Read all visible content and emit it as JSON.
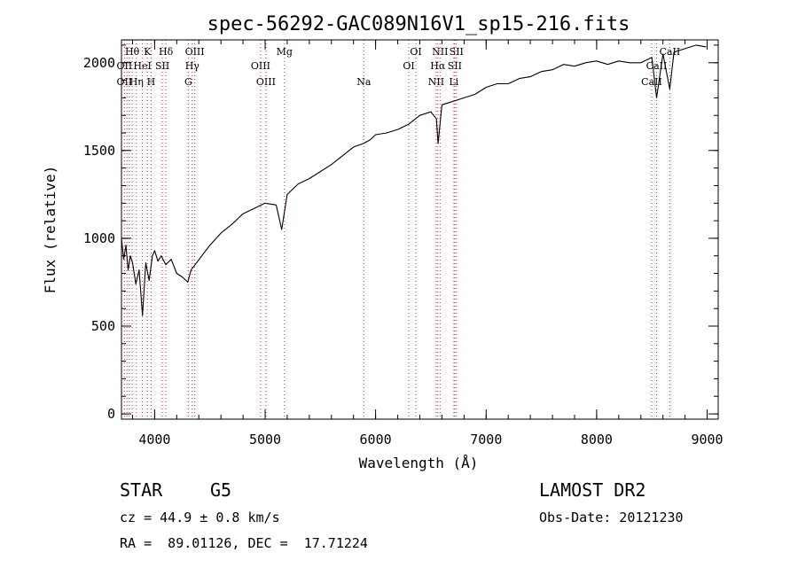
{
  "chart_data": {
    "type": "line",
    "title": "spec-56292-GAC089N16V1_sp15-216.fits",
    "xlabel": "Wavelength (Å)",
    "ylabel": "Flux (relative)",
    "xlim": [
      3700,
      9100
    ],
    "ylim": [
      -30,
      2130
    ],
    "xticks": [
      4000,
      5000,
      6000,
      7000,
      8000,
      9000
    ],
    "yticks": [
      0,
      500,
      1000,
      1500,
      2000
    ],
    "grid": false,
    "series": [
      {
        "x": [
          3700,
          3720,
          3740,
          3760,
          3780,
          3800,
          3830,
          3860,
          3890,
          3920,
          3950,
          3980,
          4000,
          4030,
          4060,
          4100,
          4150,
          4200,
          4250,
          4300,
          4330,
          4380,
          4450,
          4500,
          4600,
          4700,
          4800,
          4900,
          5000,
          5100,
          5150,
          5200,
          5300,
          5400,
          5500,
          5600,
          5700,
          5800,
          5890,
          5950,
          6000,
          6100,
          6200,
          6300,
          6400,
          6500,
          6550,
          6565,
          6600,
          6700,
          6800,
          6900,
          7000,
          7100,
          7200,
          7300,
          7400,
          7500,
          7600,
          7700,
          7800,
          7900,
          8000,
          8100,
          8200,
          8300,
          8400,
          8500,
          8542,
          8600,
          8662,
          8700,
          8800,
          8900,
          8990
        ],
        "y": [
          1000,
          880,
          960,
          820,
          900,
          860,
          740,
          820,
          560,
          860,
          760,
          900,
          930,
          870,
          900,
          850,
          880,
          800,
          780,
          750,
          820,
          860,
          920,
          960,
          1030,
          1080,
          1140,
          1170,
          1200,
          1190,
          1050,
          1250,
          1310,
          1340,
          1380,
          1420,
          1470,
          1520,
          1540,
          1560,
          1590,
          1600,
          1620,
          1650,
          1700,
          1720,
          1680,
          1540,
          1760,
          1780,
          1800,
          1820,
          1860,
          1880,
          1880,
          1910,
          1920,
          1950,
          1960,
          1990,
          1980,
          2000,
          2010,
          1990,
          2010,
          2000,
          2000,
          2030,
          1800,
          2050,
          1850,
          2060,
          2080,
          2100,
          2090
        ]
      }
    ],
    "annotations": [
      {
        "text": "Hθ",
        "x": 3797,
        "row": 1
      },
      {
        "text": "K",
        "x": 3934,
        "row": 1
      },
      {
        "text": "Hδ",
        "x": 4102,
        "row": 1
      },
      {
        "text": "OIII",
        "x": 4363,
        "row": 1
      },
      {
        "text": "Mg",
        "x": 5175,
        "row": 1
      },
      {
        "text": "OI",
        "x": 6364,
        "row": 1
      },
      {
        "text": "NII",
        "x": 6583,
        "row": 1
      },
      {
        "text": "SII",
        "x": 6731,
        "row": 1
      },
      {
        "text": "CaII",
        "x": 8662,
        "row": 1
      },
      {
        "text": "OII",
        "x": 3727,
        "row": 2
      },
      {
        "text": "HeI",
        "x": 3889,
        "row": 2
      },
      {
        "text": "SII",
        "x": 4070,
        "row": 2
      },
      {
        "text": "Hγ",
        "x": 4340,
        "row": 2
      },
      {
        "text": "OIII",
        "x": 4959,
        "row": 2
      },
      {
        "text": "OI",
        "x": 6300,
        "row": 2
      },
      {
        "text": "Hα",
        "x": 6563,
        "row": 2
      },
      {
        "text": "SII",
        "x": 6716,
        "row": 2
      },
      {
        "text": "CaII",
        "x": 8542,
        "row": 2
      },
      {
        "text": "OII",
        "x": 3727,
        "row": 3
      },
      {
        "text": "Hη",
        "x": 3835,
        "row": 3
      },
      {
        "text": "H",
        "x": 3968,
        "row": 3
      },
      {
        "text": "G",
        "x": 4305,
        "row": 3
      },
      {
        "text": "OIII",
        "x": 5007,
        "row": 3
      },
      {
        "text": "Na",
        "x": 5893,
        "row": 3
      },
      {
        "text": "NII",
        "x": 6548,
        "row": 3
      },
      {
        "text": "Li",
        "x": 6708,
        "row": 3
      },
      {
        "text": "CaII",
        "x": 8498,
        "row": 3
      }
    ],
    "line_positions": [
      3727,
      3750,
      3771,
      3797,
      3835,
      3889,
      3934,
      3968,
      4070,
      4102,
      4305,
      4340,
      4363,
      4959,
      5007,
      5175,
      5893,
      6300,
      6364,
      6548,
      6563,
      6583,
      6708,
      6716,
      6731,
      8498,
      8542,
      8662
    ],
    "line_color": "#d62728"
  },
  "info": {
    "class": "STAR",
    "subclass": "G5",
    "cz": "cz = 44.9 ± 0.8 km/s",
    "coords": "RA =  89.01126, DEC =  17.71224",
    "survey": "LAMOST DR2",
    "obs_date": "Obs-Date: 20121230"
  }
}
